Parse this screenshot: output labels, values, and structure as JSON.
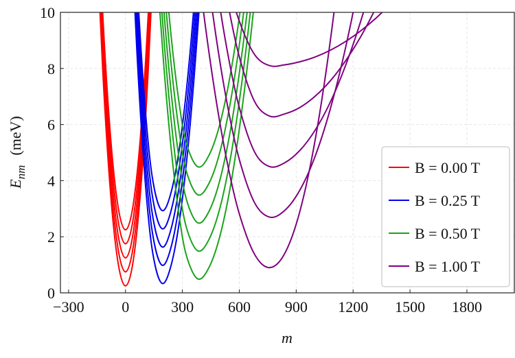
{
  "chart_data": {
    "type": "line",
    "xlabel": "m",
    "ylabel": {
      "symbol": "E",
      "subscript": "nm",
      "unit": "(meV)"
    },
    "xlim": [
      -343,
      2050
    ],
    "ylim": [
      0,
      10
    ],
    "xticks": [
      {
        "value": -300,
        "label": "−300"
      },
      0,
      300,
      600,
      900,
      1200,
      1500,
      1800
    ],
    "yticks": [
      0,
      2,
      4,
      6,
      8,
      10
    ],
    "grid": true,
    "legend": "lower right",
    "series": [
      {
        "name": "B = 0.00 T",
        "color": "#ff0000",
        "x": [
          -160,
          -120,
          -80,
          -40,
          0,
          40,
          80,
          120,
          160
        ],
        "values": [
          [
            13.95,
            7.95,
            3.67,
            1.11,
            0.25,
            1.11,
            3.67,
            7.95,
            13.95
          ],
          [
            14.45,
            8.45,
            4.17,
            1.61,
            0.75,
            1.61,
            4.17,
            8.45,
            14.45
          ],
          [
            14.95,
            8.95,
            4.67,
            2.11,
            1.25,
            2.11,
            4.67,
            8.95,
            14.95
          ],
          [
            15.45,
            9.45,
            5.17,
            2.61,
            1.75,
            2.61,
            5.17,
            9.45,
            15.45
          ],
          [
            15.95,
            9.95,
            5.67,
            3.11,
            2.25,
            3.11,
            5.67,
            9.95,
            15.95
          ]
        ]
      },
      {
        "name": "B = 0.25 T",
        "color": "#0000ee",
        "x": [
          20,
          60,
          100,
          140,
          190,
          240,
          290,
          340,
          390,
          430
        ],
        "values": [
          [
            14.51,
            8.63,
            4.32,
            1.58,
            0.35,
            0.97,
            2.83,
            5.93,
            10.27,
            14.63
          ],
          [
            15.16,
            9.28,
            4.97,
            2.23,
            1.0,
            1.62,
            3.48,
            6.58,
            10.92,
            15.28
          ],
          [
            15.81,
            9.93,
            5.62,
            2.88,
            1.65,
            2.27,
            4.13,
            7.23,
            11.57,
            15.93
          ],
          [
            16.46,
            10.58,
            6.27,
            3.53,
            2.3,
            2.92,
            4.78,
            7.88,
            12.22,
            16.58
          ],
          [
            17.11,
            11.23,
            6.92,
            4.18,
            2.95,
            3.57,
            5.43,
            8.53,
            12.87,
            17.23
          ]
        ]
      },
      {
        "name": "B = 0.50 T",
        "color": "#1aa31a",
        "x": [
          160,
          200,
          240,
          280,
          320,
          380,
          440,
          500,
          560,
          620,
          680,
          740
        ],
        "values": [
          [
            12.12,
            8.28,
            5.2,
            2.9,
            1.36,
            0.5,
            0.9,
            2.08,
            4.06,
            6.84,
            10.4,
            14.76
          ],
          [
            13.12,
            9.28,
            6.2,
            3.9,
            2.36,
            1.5,
            1.9,
            3.08,
            5.06,
            7.84,
            11.4,
            15.76
          ],
          [
            14.12,
            10.28,
            7.2,
            4.9,
            3.36,
            2.5,
            2.9,
            4.08,
            6.06,
            8.84,
            12.4,
            16.76
          ],
          [
            15.12,
            11.28,
            8.2,
            5.9,
            4.36,
            3.5,
            3.9,
            5.08,
            7.06,
            9.84,
            13.4,
            17.76
          ],
          [
            16.12,
            12.28,
            9.2,
            6.9,
            5.36,
            4.5,
            4.9,
            6.08,
            8.06,
            10.84,
            14.4,
            18.76
          ]
        ]
      },
      {
        "name": "B = 1.00 T",
        "color": "#800080",
        "x": [
          360,
          420,
          480,
          540,
          600,
          680,
          760,
          840,
          920,
          1000,
          1080,
          1160,
          1240,
          1320,
          1400
        ],
        "values": [
          [
            12.9,
            9.57,
            6.78,
            4.53,
            2.82,
            1.38,
            0.9,
            1.41,
            2.92,
            5.45,
            8.99,
            13.54,
            19.1,
            25.7,
            33.3
          ],
          [
            15.6,
            12.02,
            9.02,
            6.6,
            4.76,
            3.22,
            2.7,
            2.94,
            3.67,
            4.87,
            6.56,
            8.73,
            11.39,
            14.52,
            18.14
          ],
          [
            17.72,
            14.05,
            10.98,
            8.5,
            6.61,
            5.03,
            4.5,
            4.64,
            5.08,
            5.8,
            6.8,
            8.1,
            9.68,
            11.56,
            13.72
          ],
          [
            19.58,
            15.89,
            12.81,
            10.32,
            8.42,
            6.83,
            6.3,
            6.38,
            6.61,
            7.01,
            7.56,
            8.27,
            9.13,
            10.16,
            11.34
          ],
          [
            18.02,
            15.27,
            12.96,
            11.1,
            9.69,
            8.5,
            8.1,
            8.13,
            8.24,
            8.41,
            8.65,
            8.96,
            9.34,
            9.79,
            10.31
          ]
        ]
      }
    ]
  }
}
